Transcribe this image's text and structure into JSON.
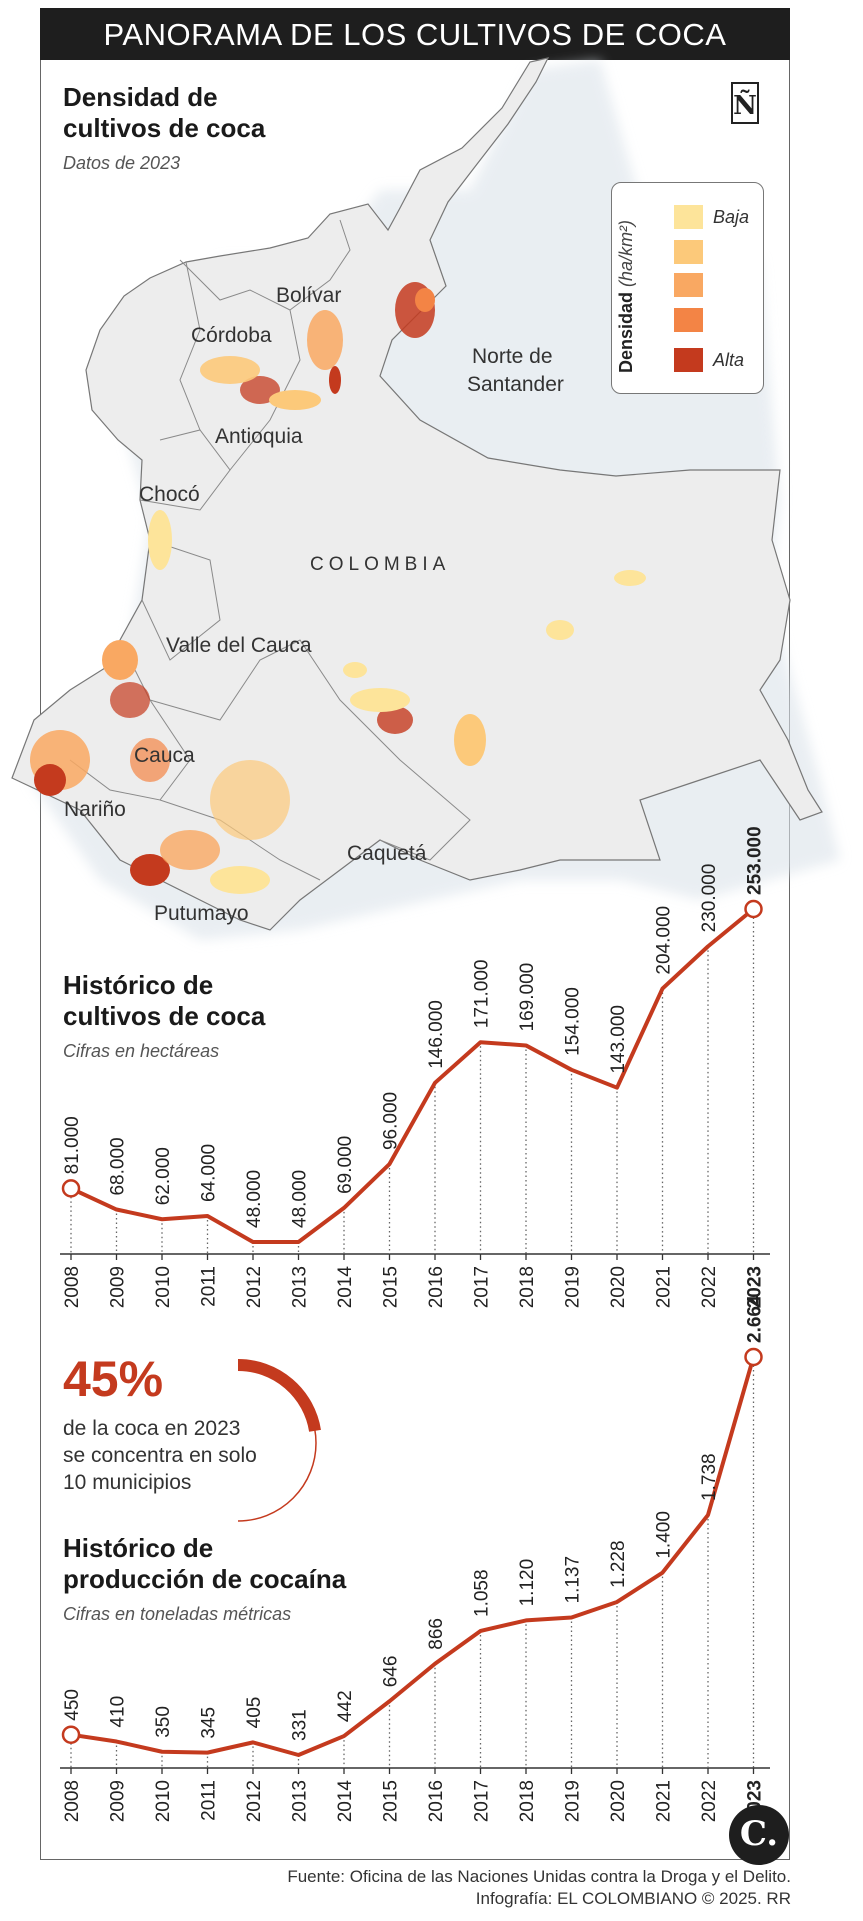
{
  "header": {
    "title": "PANORAMA DE LOS CULTIVOS DE COCA"
  },
  "map_section": {
    "title_line1": "Densidad de",
    "title_line2": "cultivos de coca",
    "subtitle": "Datos de 2023",
    "country_label": "COLOMBIA",
    "regions": [
      "Bolívar",
      "Córdoba",
      "Norte de",
      "Santander",
      "Antioquia",
      "Chocó",
      "Valle del Cauca",
      "Cauca",
      "Nariño",
      "Caquetá",
      "Putumayo"
    ]
  },
  "legend": {
    "title": "Densidad",
    "unit": "(ha/km²)",
    "low_label": "Baja",
    "high_label": "Alta",
    "colors": [
      "#fde49a",
      "#fcc97a",
      "#f9a862",
      "#f38445",
      "#c43a1e"
    ]
  },
  "publisher_logo": "Ñ",
  "hectares_section": {
    "title_line1": "Histórico de",
    "title_line2": "cultivos de coca",
    "subtitle": "Cifras en hectáreas"
  },
  "stat": {
    "value": "45%",
    "text_line1": "de la coca en 2023",
    "text_line2": "se concentra en solo",
    "text_line3": "10 municipios",
    "fraction": 0.45
  },
  "cocaine_section": {
    "title_line1": "Histórico de",
    "title_line2": "producción de cocaína",
    "subtitle": "Cifras en toneladas métricas"
  },
  "chart_data": [
    {
      "type": "line",
      "title": "Histórico de cultivos de coca",
      "subtitle": "Cifras en hectáreas",
      "x": [
        "2008",
        "2009",
        "2010",
        "2011",
        "2012",
        "2013",
        "2014",
        "2015",
        "2016",
        "2017",
        "2018",
        "2019",
        "2020",
        "2021",
        "2022",
        "2023"
      ],
      "values": [
        81000,
        68000,
        62000,
        64000,
        48000,
        48000,
        69000,
        96000,
        146000,
        171000,
        169000,
        154000,
        143000,
        204000,
        230000,
        253000
      ],
      "labels": [
        "81.000",
        "68.000",
        "62.000",
        "64.000",
        "48.000",
        "48.000",
        "69.000",
        "96.000",
        "146.000",
        "171.000",
        "169.000",
        "154.000",
        "143.000",
        "204.000",
        "230.000",
        "253.000"
      ],
      "color": "#c43a1e",
      "grid": false
    },
    {
      "type": "line",
      "title": "Histórico de producción de cocaína",
      "subtitle": "Cifras en toneladas métricas",
      "x": [
        "2008",
        "2009",
        "2010",
        "2011",
        "2012",
        "2013",
        "2014",
        "2015",
        "2016",
        "2017",
        "2018",
        "2019",
        "2020",
        "2021",
        "2022",
        "2023"
      ],
      "values": [
        450,
        410,
        350,
        345,
        405,
        331,
        442,
        646,
        866,
        1058,
        1120,
        1137,
        1228,
        1400,
        1738,
        2664
      ],
      "labels": [
        "450",
        "410",
        "350",
        "345",
        "405",
        "331",
        "442",
        "646",
        "866",
        "1.058",
        "1.120",
        "1.137",
        "1.228",
        "1.400",
        "1.738",
        "2.664"
      ],
      "color": "#c43a1e",
      "grid": false
    }
  ],
  "footer": {
    "source": "Fuente: Oficina de las Naciones Unidas contra la Droga y el Delito.",
    "credit": "Infografía: EL COLOMBIANO © 2025. RR"
  },
  "brand_logo": "C."
}
